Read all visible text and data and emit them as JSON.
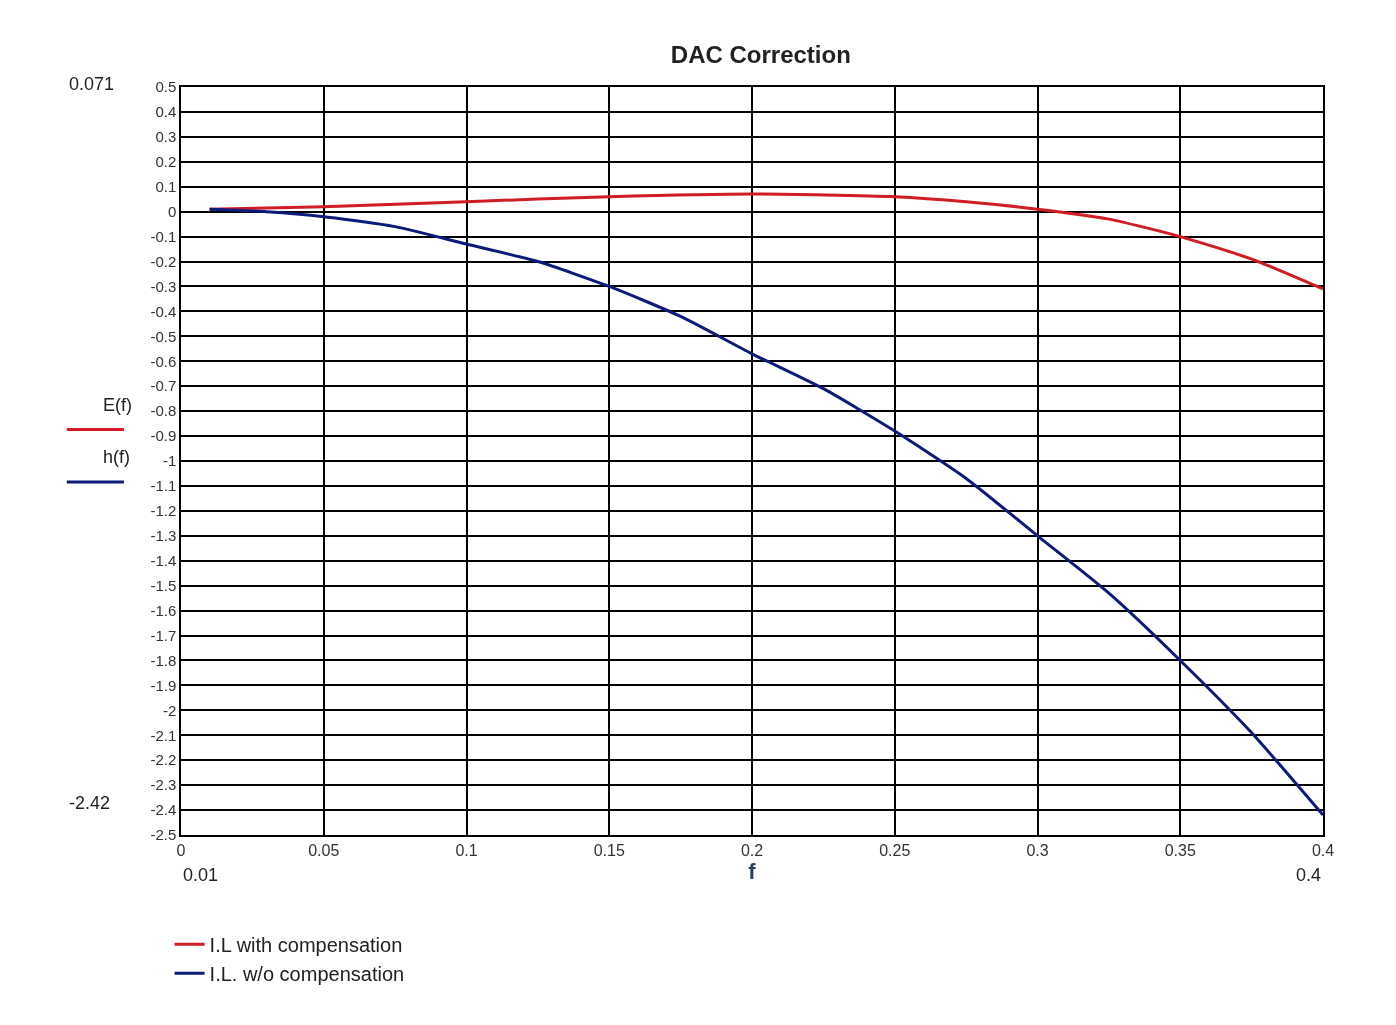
{
  "chart_data": {
    "type": "line",
    "title": "DAC Correction",
    "xlabel": "f",
    "annotations": [
      "0.071",
      "-2.42",
      "0.01",
      "0.4",
      "E(f)",
      "h(f)"
    ],
    "series": [
      {
        "name": "I.L with compensation",
        "color": "#d01c24",
        "x": [
          0.01,
          0.05,
          0.1,
          0.15,
          0.2,
          0.25,
          0.275,
          0.3,
          0.325,
          0.35,
          0.375,
          0.4
        ],
        "values": [
          0.01,
          0.02,
          0.04,
          0.06,
          0.071,
          0.06,
          0.04,
          0.01,
          -0.03,
          -0.1,
          -0.19,
          -0.31
        ]
      },
      {
        "name": "I.L. w/o compensation",
        "color": "#0c1a7a",
        "x": [
          0.01,
          0.03,
          0.05,
          0.075,
          0.1,
          0.125,
          0.15,
          0.175,
          0.2,
          0.225,
          0.25,
          0.275,
          0.3,
          0.325,
          0.35,
          0.375,
          0.4
        ],
        "values": [
          0.01,
          0.0,
          -0.02,
          -0.06,
          -0.13,
          -0.2,
          -0.3,
          -0.42,
          -0.57,
          -0.71,
          -0.88,
          -1.07,
          -1.3,
          -1.53,
          -1.8,
          -2.09,
          -2.42
        ]
      }
    ],
    "xlim": [
      0,
      0.4
    ],
    "xticks": [
      0,
      0.05,
      0.1,
      0.15,
      0.2,
      0.25,
      0.3,
      0.35,
      0.4
    ],
    "ylim": [
      -2.5,
      0.5
    ],
    "yticks": [
      0.5,
      0.4,
      0.3,
      0.2,
      0.1,
      0,
      -0.1,
      -0.2,
      -0.3,
      -0.4,
      -0.5,
      -0.6,
      -0.7,
      -0.8,
      -0.9,
      -1,
      -1.1,
      -1.2,
      -1.3,
      -1.4,
      -1.5,
      -1.6,
      -1.7,
      -1.8,
      -1.9,
      -2,
      -2.1,
      -2.2,
      -2.3,
      -2.4,
      -2.5
    ],
    "grid": true,
    "legend": "bottom left",
    "line_style": "solid",
    "marker": "none"
  }
}
